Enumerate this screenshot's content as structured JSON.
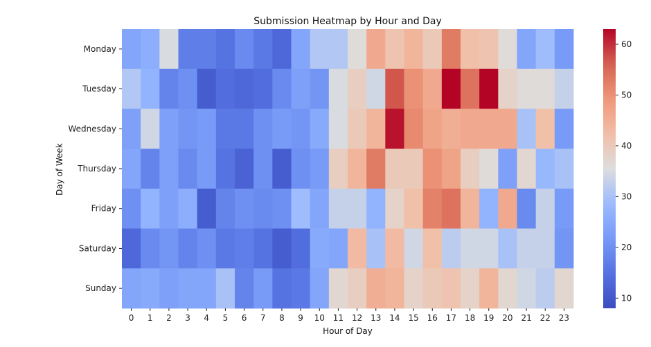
{
  "chart_data": {
    "type": "heatmap",
    "title": "Submission Heatmap by Hour and Day",
    "xlabel": "Hour of Day",
    "ylabel": "Day of Week",
    "x_categories": [
      "0",
      "1",
      "2",
      "3",
      "4",
      "5",
      "6",
      "7",
      "8",
      "9",
      "10",
      "11",
      "12",
      "13",
      "14",
      "15",
      "16",
      "17",
      "18",
      "19",
      "20",
      "21",
      "22",
      "23"
    ],
    "y_categories": [
      "Monday",
      "Tuesday",
      "Wednesday",
      "Thursday",
      "Friday",
      "Saturday",
      "Sunday"
    ],
    "values": [
      [
        24,
        26,
        35,
        17,
        17,
        15,
        19,
        16,
        13,
        24,
        31,
        31,
        36,
        46,
        41,
        44,
        40,
        53,
        42,
        41,
        36,
        24,
        29,
        22
      ],
      [
        31,
        27,
        18,
        20,
        11,
        14,
        13,
        14,
        19,
        23,
        21,
        35,
        39,
        34,
        57,
        50,
        46,
        63,
        54,
        63,
        38,
        36,
        36,
        33
      ],
      [
        23,
        34,
        23,
        21,
        22,
        16,
        16,
        20,
        22,
        21,
        25,
        35,
        40,
        44,
        62,
        51,
        47,
        45,
        46,
        46,
        46,
        30,
        42,
        22
      ],
      [
        24,
        18,
        23,
        19,
        22,
        15,
        12,
        20,
        11,
        20,
        22,
        39,
        44,
        53,
        40,
        40,
        50,
        47,
        39,
        36,
        23,
        37,
        28,
        30
      ],
      [
        20,
        27,
        23,
        26,
        11,
        18,
        20,
        19,
        20,
        29,
        24,
        33,
        33,
        27,
        38,
        42,
        52,
        54,
        44,
        27,
        46,
        19,
        33,
        22
      ],
      [
        13,
        19,
        21,
        18,
        20,
        16,
        17,
        15,
        11,
        14,
        25,
        24,
        43,
        30,
        43,
        34,
        42,
        32,
        34,
        34,
        30,
        33,
        33,
        21
      ],
      [
        24,
        25,
        23,
        24,
        24,
        30,
        18,
        22,
        15,
        16,
        24,
        37,
        39,
        45,
        44,
        38,
        40,
        41,
        38,
        44,
        37,
        34,
        32,
        37
      ]
    ],
    "colormap": "coolwarm",
    "colorbar": {
      "min": 8,
      "max": 63,
      "ticks": [
        10,
        20,
        30,
        40,
        50,
        60
      ]
    }
  }
}
